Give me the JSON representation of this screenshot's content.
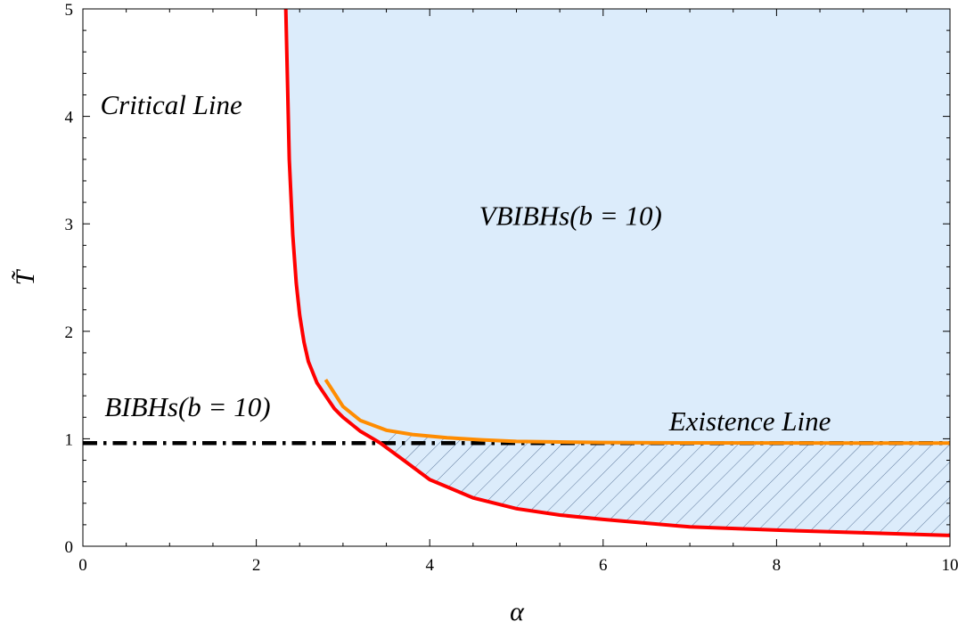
{
  "chart_data": {
    "type": "line",
    "xlabel": "α",
    "ylabel": "T̃",
    "xlim": [
      0,
      10
    ],
    "ylim": [
      0,
      5
    ],
    "x_ticks": [
      0,
      2,
      4,
      6,
      8,
      10
    ],
    "y_ticks": [
      0,
      1,
      2,
      3,
      4,
      5
    ],
    "grid": false,
    "colors": {
      "critical": "#ff0000",
      "existence": "#ff8c00",
      "bibh": "#000000",
      "vbibh_region": "#dcecfb",
      "hatch": "#4d6a8f"
    },
    "series": [
      {
        "name": "Critical Line",
        "style": "solid",
        "x": [
          2.34,
          2.38,
          2.42,
          2.46,
          2.5,
          2.55,
          2.6,
          2.7,
          2.8,
          2.9,
          3.0,
          3.2,
          3.43,
          3.7,
          4.0,
          4.5,
          5.0,
          5.5,
          6.0,
          7.0,
          8.0,
          9.0,
          10.0
        ],
        "y": [
          5.0,
          3.6,
          2.9,
          2.45,
          2.15,
          1.9,
          1.72,
          1.52,
          1.4,
          1.28,
          1.2,
          1.07,
          0.96,
          0.8,
          0.62,
          0.45,
          0.35,
          0.29,
          0.25,
          0.18,
          0.15,
          0.125,
          0.1
        ]
      },
      {
        "name": "Existence Line",
        "style": "solid",
        "x": [
          2.8,
          3.0,
          3.2,
          3.5,
          3.8,
          4.2,
          4.6,
          5.0,
          5.5,
          6.0,
          7.0,
          8.0,
          9.0,
          10.0
        ],
        "y": [
          1.55,
          1.3,
          1.17,
          1.08,
          1.04,
          1.01,
          0.99,
          0.975,
          0.97,
          0.965,
          0.962,
          0.961,
          0.96,
          0.96
        ]
      },
      {
        "name": "BIBHs(b=10)",
        "style": "dash-dot",
        "x": [
          0,
          10
        ],
        "y": [
          0.96,
          0.96
        ]
      }
    ],
    "annotations": [
      {
        "text": "Critical Line",
        "x": 0.2,
        "y": 4.02
      },
      {
        "text": "VBIBHs(b = 10)",
        "x": 4.57,
        "y": 2.99
      },
      {
        "text": "BIBHs(b = 10)",
        "x": 0.25,
        "y": 1.21
      },
      {
        "text": "Existence Line",
        "x": 6.76,
        "y": 1.08
      }
    ]
  }
}
